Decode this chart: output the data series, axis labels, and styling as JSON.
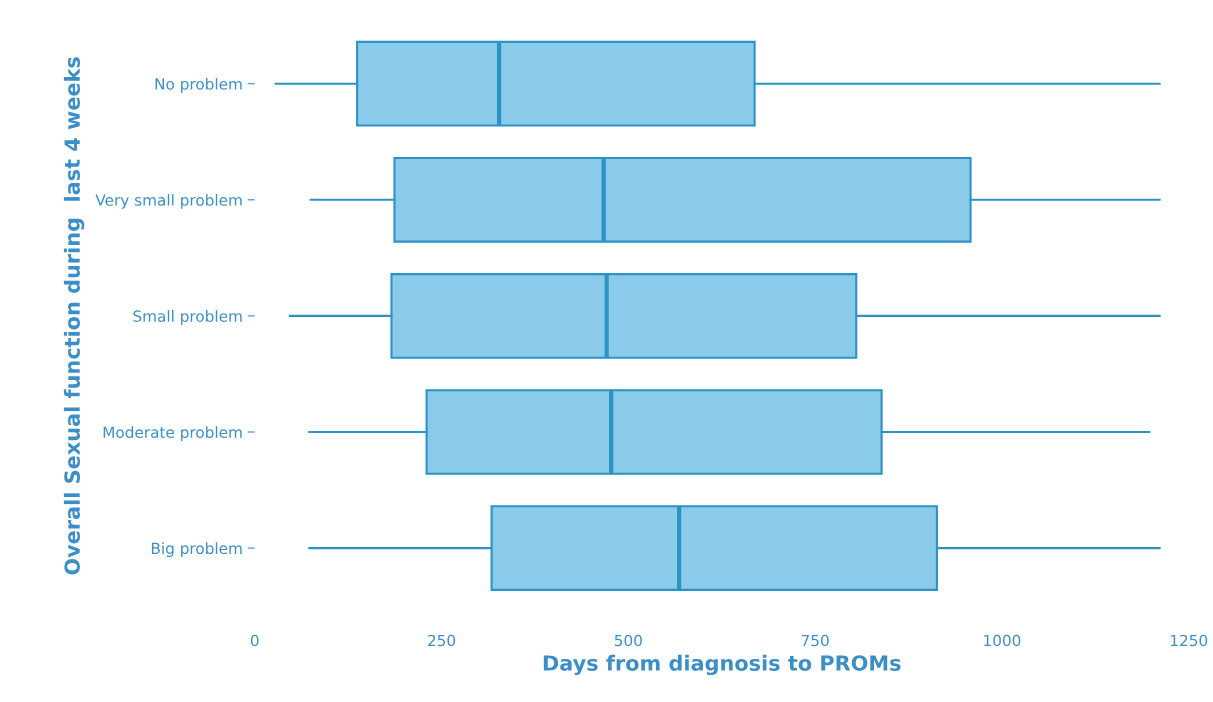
{
  "chart_data": {
    "type": "box",
    "orientation": "horizontal",
    "xlabel": "Days from diagnosis to PROMs",
    "ylabel": "Overall Sexual function during  last 4 weeks",
    "categories": [
      "No problem",
      "Very small problem",
      "Small problem",
      "Moderate problem",
      "Big problem"
    ],
    "series": [
      {
        "color": "#89cbe8",
        "boxes": [
          {
            "low": 28,
            "q1": 137,
            "median": 327,
            "q3": 669,
            "high": 1211
          },
          {
            "low": 75,
            "q1": 187,
            "median": 467,
            "q3": 958,
            "high": 1211
          },
          {
            "low": 47,
            "q1": 183,
            "median": 471,
            "q3": 805,
            "high": 1211
          },
          {
            "low": 73,
            "q1": 230,
            "median": 477,
            "q3": 839,
            "high": 1197
          },
          {
            "low": 73,
            "q1": 317,
            "median": 568,
            "q3": 913,
            "high": 1211
          }
        ]
      }
    ],
    "xlim": [
      0,
      1250
    ],
    "xticks": [
      0,
      250,
      500,
      750,
      1000,
      1250
    ],
    "grid": false,
    "legend": false
  }
}
